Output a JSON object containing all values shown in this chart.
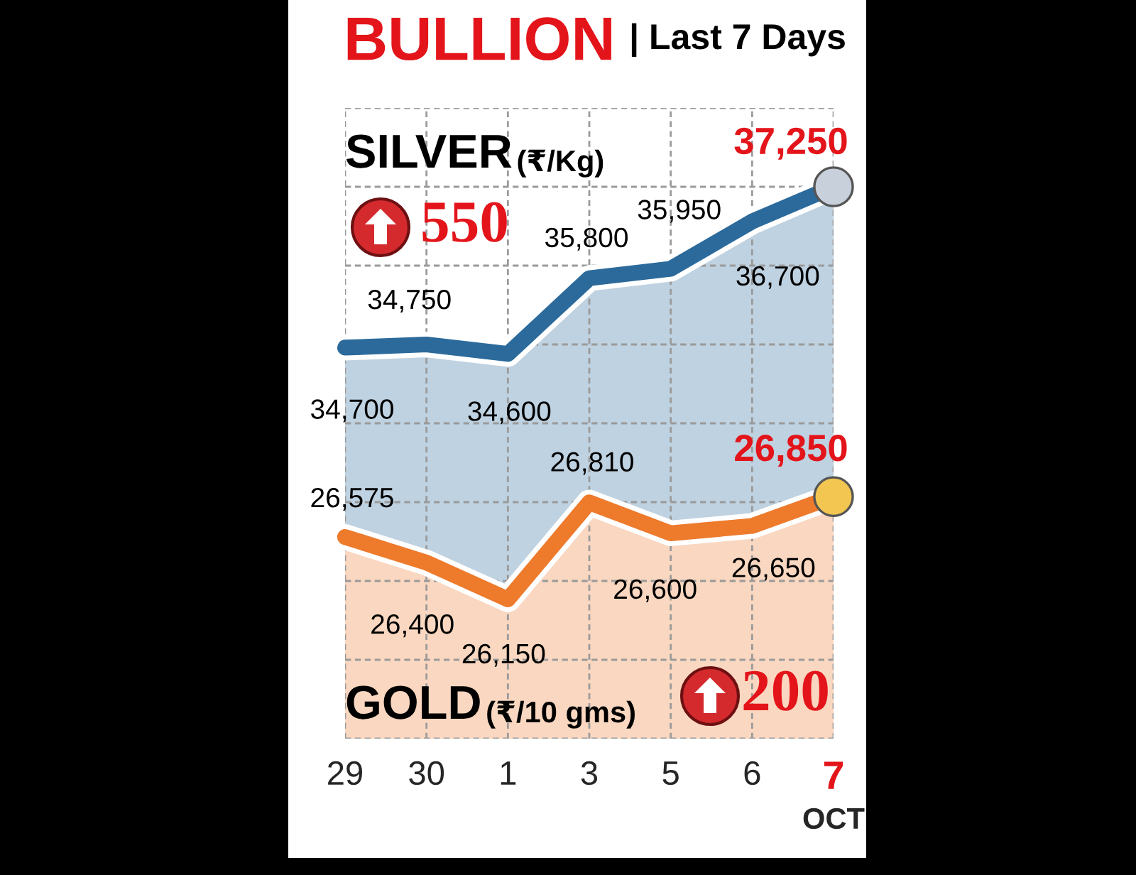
{
  "chart_data": {
    "type": "area",
    "title": "BULLION",
    "subtitle": "| Last 7 Days",
    "xlabel": "OCT",
    "ylabel": "(₹/Kg)",
    "y2label": "(₹/10 gms)",
    "categories": [
      "29",
      "30",
      "1",
      "3",
      "5",
      "6",
      "7"
    ],
    "series": [
      {
        "name": "SILVER",
        "color": "#2b6a9b",
        "values": [
          34700,
          34750,
          34600,
          35800,
          35950,
          36700,
          37250
        ],
        "value_labels": [
          "34,700",
          "34,750",
          "34,600",
          "35,800",
          "35,950",
          "36,700",
          "37,250"
        ]
      },
      {
        "name": "GOLD",
        "color": "#ee7a2c",
        "axis": "y2",
        "values": [
          26575,
          26400,
          26150,
          26810,
          26600,
          26650,
          26850
        ],
        "value_labels": [
          "26,575",
          "26,400",
          "26,150",
          "26,810",
          "26,600",
          "26,650",
          "26,850"
        ]
      },
      {
        "type": "scatter",
        "color": "#c8d0dc",
        "marker": "circle",
        "x": [
          "7"
        ],
        "values": [
          37250
        ]
      },
      {
        "type": "scatter",
        "color": "#f2c650",
        "marker": "circle",
        "axis": "y2",
        "x": [
          "7"
        ],
        "values": [
          26850
        ]
      }
    ],
    "annotations": [
      "550",
      "200"
    ],
    "ylim": [
      28500,
      38500
    ],
    "yticks": [
      {
        "value": 28500,
        "label": null
      },
      {
        "value": 29750,
        "label": null
      },
      {
        "value": 31000,
        "label": null
      },
      {
        "value": 32250,
        "label": null
      },
      {
        "value": 33500,
        "label": null
      },
      {
        "value": 34750,
        "label": null
      },
      {
        "value": 36000,
        "label": null
      },
      {
        "value": 37250,
        "label": null
      },
      {
        "value": 38500,
        "label": null
      }
    ],
    "y2lim": [
      25200,
      29500
    ],
    "grid": true,
    "tick_labels": "x"
  }
}
